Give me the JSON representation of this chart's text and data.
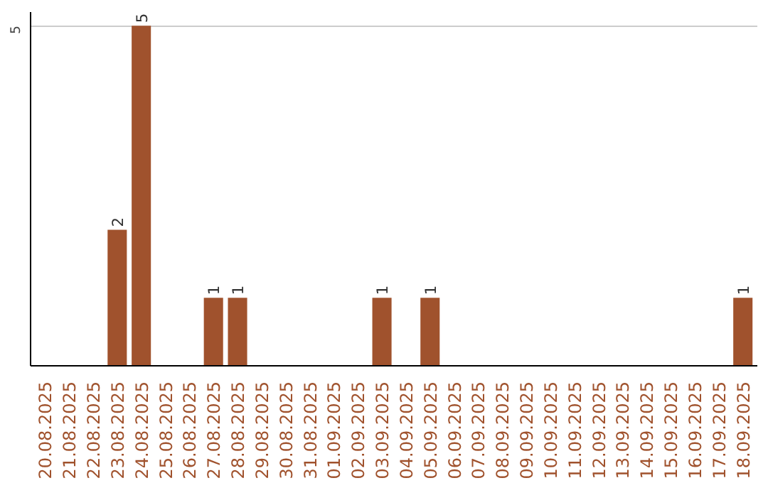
{
  "chart_data": {
    "type": "bar",
    "categories": [
      "20.08.2025",
      "21.08.2025",
      "22.08.2025",
      "23.08.2025",
      "24.08.2025",
      "25.08.2025",
      "26.08.2025",
      "27.08.2025",
      "28.08.2025",
      "29.08.2025",
      "30.08.2025",
      "31.08.2025",
      "01.09.2025",
      "02.09.2025",
      "03.09.2025",
      "04.09.2025",
      "05.09.2025",
      "06.09.2025",
      "07.09.2025",
      "08.09.2025",
      "09.09.2025",
      "10.09.2025",
      "11.09.2025",
      "12.09.2025",
      "13.09.2025",
      "14.09.2025",
      "15.09.2025",
      "16.09.2025",
      "17.09.2025",
      "18.09.2025"
    ],
    "values": [
      0,
      0,
      0,
      2,
      5,
      0,
      0,
      1,
      1,
      0,
      0,
      0,
      0,
      0,
      1,
      0,
      1,
      0,
      0,
      0,
      0,
      0,
      0,
      0,
      0,
      0,
      0,
      0,
      0,
      1
    ],
    "value_labels": [
      null,
      null,
      null,
      "2",
      "5",
      null,
      null,
      "1",
      "1",
      null,
      null,
      null,
      null,
      null,
      "1",
      null,
      "1",
      null,
      null,
      null,
      null,
      null,
      null,
      null,
      null,
      null,
      null,
      null,
      null,
      "1"
    ],
    "color": "#a0522d",
    "ylim": [
      0,
      5.2
    ],
    "yticks": [
      5
    ],
    "grid": "y"
  }
}
